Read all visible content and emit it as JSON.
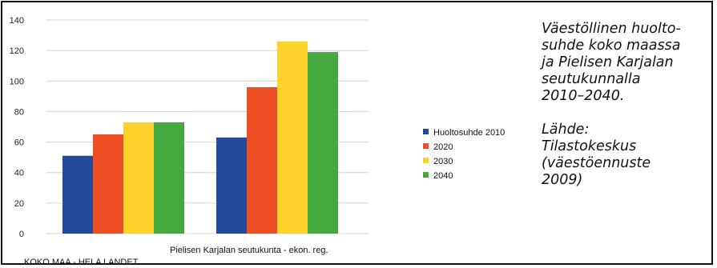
{
  "chart_data": {
    "type": "bar",
    "categories": [
      "KOKO MAA - HELA LANDET",
      "Pielisen Karjalan seutukunta - ekon. reg."
    ],
    "series": [
      {
        "name": "Huoltosuhde 2010",
        "values": [
          51,
          63
        ],
        "color": "#214a9a"
      },
      {
        "name": "2020",
        "values": [
          65,
          96
        ],
        "color": "#ef4d23"
      },
      {
        "name": "2030",
        "values": [
          73,
          126
        ],
        "color": "#fdd22a"
      },
      {
        "name": "2040",
        "values": [
          73,
          119
        ],
        "color": "#45a942"
      }
    ],
    "yticks": [
      0,
      20,
      40,
      60,
      80,
      100,
      120,
      140
    ],
    "ylim": [
      0,
      140
    ],
    "grid": true,
    "legend": "right",
    "title": "",
    "xlabel": "",
    "ylabel": ""
  },
  "caption": {
    "paragraphs": [
      [
        "Väestöllinen huolto-",
        "suhde koko maassa",
        "ja Pielisen Karjalan",
        "seutukunnalla",
        "2010–2040."
      ],
      [
        "Lähde:",
        "Tilastokeskus",
        "(väestöennuste",
        "2009)"
      ]
    ]
  }
}
